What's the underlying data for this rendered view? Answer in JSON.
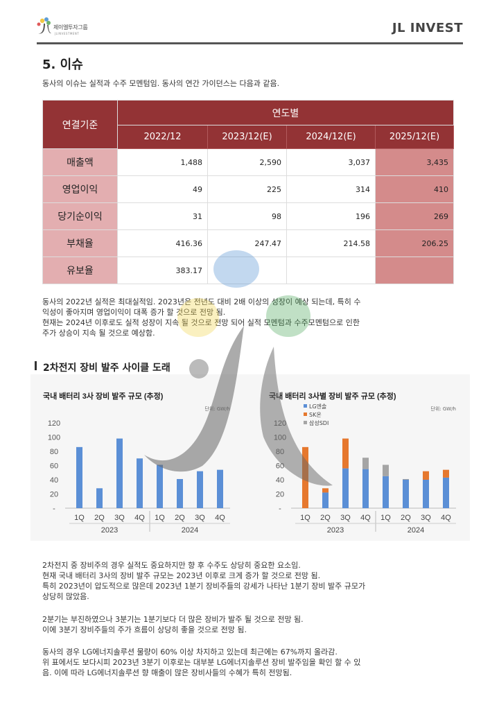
{
  "header": {
    "logo_text": "제이엘투자그룹",
    "logo_sub": "JLINVESTMENT",
    "brand": "JL INVEST"
  },
  "section": {
    "title": "5. 이슈",
    "intro": "동사의 이슈는 실적과 수주 모멘텀임. 동사의 연간 가이던스는 다음과 같음."
  },
  "table": {
    "corner": "연결기준",
    "group_header": "연도별",
    "years": [
      "2022/12",
      "2023/12(E)",
      "2024/12(E)",
      "2025/12(E)"
    ],
    "rows": [
      {
        "label": "매출액",
        "values": [
          "1,488",
          "2,590",
          "3,037",
          "3,435"
        ]
      },
      {
        "label": "영업이익",
        "values": [
          "49",
          "225",
          "314",
          "410"
        ]
      },
      {
        "label": "당기순이익",
        "values": [
          "31",
          "98",
          "196",
          "269"
        ]
      },
      {
        "label": "부채율",
        "values": [
          "416.36",
          "247.47",
          "214.58",
          "206.25"
        ]
      },
      {
        "label": "유보율",
        "values": [
          "383.17",
          "",
          "",
          ""
        ]
      }
    ]
  },
  "para1": [
    "동사의 2022년 실적은 최대실적임. 2023년은 전년도 대비 2배 이상의 성장이 예상 되는데, 특히 수",
    "익성이 좋아지며 영업이익이 대폭 증가 할 것으로 전망 됨.",
    "현재는 2024년 이후로도 실적 성장이 지속 될 것으로 전망 되어 실적 모멘텀과 수주모멘텀으로 인한",
    "주가 상승이 지속 될 것으로 예상함."
  ],
  "subsection_title": "2차전지 장비 발주 사이클 도래",
  "chart_data": [
    {
      "type": "bar",
      "title": "국내 배터리 3사 장비 발주 규모 (추정)",
      "unit": "단위: GW/h",
      "categories": [
        "1Q",
        "2Q",
        "3Q",
        "4Q",
        "1Q",
        "2Q",
        "3Q",
        "4Q"
      ],
      "tick_labels": [
        "1Q",
        "2Q",
        "3Q",
        "4Q",
        "1Q",
        "2Q",
        "3Q",
        "4Q"
      ],
      "groups": [
        "2023",
        "2024"
      ],
      "ylim": [
        0,
        120
      ],
      "yticks": [
        "120",
        "100",
        "80",
        "60",
        "40",
        "20",
        "-"
      ],
      "values": [
        86,
        28,
        98,
        70,
        61,
        41,
        52,
        54
      ],
      "color": "#5b8fd6"
    },
    {
      "type": "bar",
      "title": "국내 배터리 3사별 장비 발주 규모 (추정)",
      "unit": "단위: GW/h",
      "categories": [
        "1Q",
        "2Q",
        "3Q",
        "4Q",
        "1Q",
        "2Q",
        "3Q",
        "4Q"
      ],
      "tick_labels": [
        "1Q",
        "2Q",
        "3Q",
        "4Q",
        "1Q",
        "2Q",
        "3Q",
        "4Q"
      ],
      "groups": [
        "2023",
        "2024"
      ],
      "ylim": [
        0,
        120
      ],
      "yticks": [
        "120",
        "100",
        "80",
        "60",
        "40",
        "20",
        "-"
      ],
      "stacked": true,
      "series": [
        {
          "name": "LG엔솔",
          "color": "#5b8fd6",
          "values": [
            0,
            22,
            56,
            55,
            45,
            40,
            40,
            43
          ]
        },
        {
          "name": "SK온",
          "color": "#e6782e",
          "values": [
            86,
            6,
            42,
            0,
            0,
            0,
            12,
            11
          ]
        },
        {
          "name": "삼성SDI",
          "color": "#a5a5a5",
          "values": [
            0,
            0,
            0,
            16,
            16,
            1,
            0,
            0
          ]
        }
      ]
    }
  ],
  "para2": [
    "2차전지 중 장비주의 경우 실적도 중요하지만 향 후 수주도 상당히 중요한 요소임.",
    "현재 국내 배터리 3사의 장비 발주 규모는 2023년 이후로 크게 증가 할 것으로 전망 됨.",
    "특히 2023년이 압도적으로 많은데 2023년 1분기 장비주들의 강세가 나타난 1분기 장비 발주 규모가",
    "상당히 많았음."
  ],
  "para3": [
    "2분기는 부진하였으나 3분기는 1분기보다 더 많은 장비가 발주 될 것으로 전망 됨.",
    "이에 3분기 장비주들의 주가 흐름이 상당히 좋을 것으로 전망 됨."
  ],
  "para4": [
    "동사의 경우 LG에너지솔루션 물량이 60% 이상 차지하고 있는데 최근에는 67%까지 올라감.",
    "위 표에서도 보다시피 2023년 3분기 이후로는 대부분 LG에너지솔루션 장비 발주임을 확인 할 수 있",
    "음. 이에 따라 LG에너지솔루션 향 매출이 많은 장비사들의 수혜가 특히 전망됨."
  ]
}
